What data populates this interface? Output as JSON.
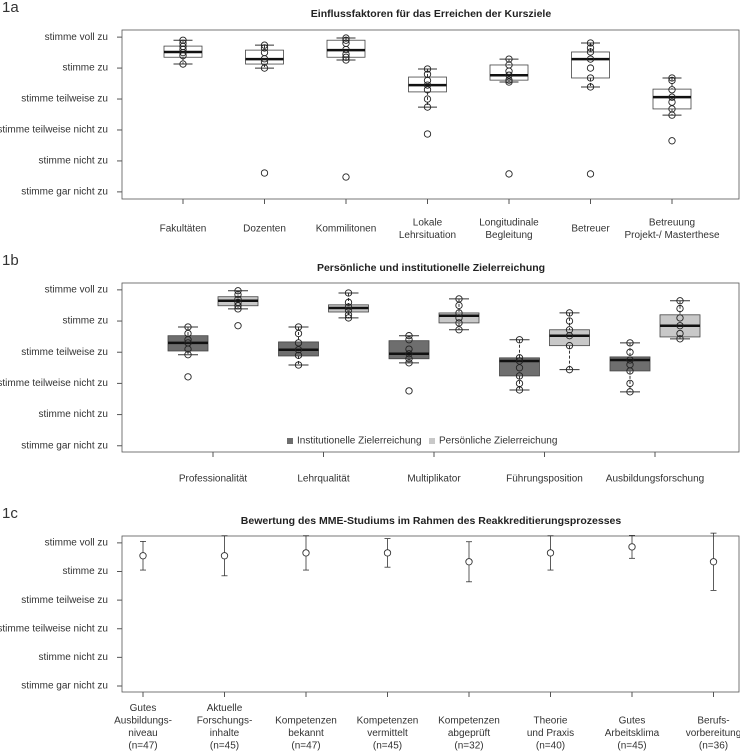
{
  "chart_data": [
    {
      "type": "boxplot",
      "label": "1a",
      "title": "Einflussfaktoren für das Erreichen der Kursziele",
      "categories": [
        [
          "Fakultäten"
        ],
        [
          "Dozenten"
        ],
        [
          "Kommilitonen"
        ],
        [
          "Lokale",
          "Lehrsituation"
        ],
        [
          "Longitudinale",
          "Begleitung"
        ],
        [
          "Betreuer"
        ],
        [
          "Betreuung",
          "Projekt-/ Masterthese"
        ]
      ],
      "ylim": [
        0.77,
        6.23
      ],
      "yticks": [
        {
          "value": 6,
          "label": "stimme voll zu"
        },
        {
          "value": 5,
          "label": "stimme zu"
        },
        {
          "value": 4,
          "label": "stimme teilweise zu"
        },
        {
          "value": 3,
          "label": "stimme teilweise nicht zu"
        },
        {
          "value": 2,
          "label": "stimme nicht zu"
        },
        {
          "value": 1,
          "label": "stimme gar nicht zu"
        }
      ],
      "series": [
        {
          "color": "#ffffff",
          "boxes": [
            {
              "lo": 5.13,
              "q1": 5.35,
              "median": 5.52,
              "q3": 5.71,
              "hi": 5.9,
              "points": [
                5.9,
                5.8,
                5.7,
                5.6,
                5.5,
                5.4,
                5.13
              ]
            },
            {
              "lo": 5.0,
              "q1": 5.13,
              "median": 5.29,
              "q3": 5.58,
              "hi": 5.74,
              "points": [
                5.74,
                5.65,
                5.5,
                5.3,
                5.2,
                5.0,
                1.61
              ]
            },
            {
              "lo": 5.26,
              "q1": 5.35,
              "median": 5.58,
              "q3": 5.9,
              "hi": 5.97,
              "points": [
                5.97,
                5.9,
                5.8,
                5.6,
                5.45,
                5.35,
                5.26,
                1.48
              ]
            },
            {
              "lo": 3.74,
              "q1": 4.23,
              "median": 4.45,
              "q3": 4.71,
              "hi": 4.97,
              "points": [
                4.97,
                4.8,
                4.6,
                4.45,
                4.3,
                4.0,
                3.74,
                2.87
              ]
            },
            {
              "lo": 4.55,
              "q1": 4.61,
              "median": 4.77,
              "q3": 5.1,
              "hi": 5.29,
              "points": [
                5.29,
                5.1,
                4.9,
                4.77,
                4.61,
                4.55,
                1.58
              ]
            },
            {
              "lo": 4.39,
              "q1": 4.68,
              "median": 5.29,
              "q3": 5.52,
              "hi": 5.81,
              "points": [
                5.81,
                5.65,
                5.52,
                5.29,
                5.0,
                4.68,
                4.39,
                1.58
              ]
            },
            {
              "lo": 3.48,
              "q1": 3.68,
              "median": 4.06,
              "q3": 4.32,
              "hi": 4.68,
              "points": [
                4.68,
                4.6,
                4.3,
                4.06,
                3.9,
                3.68,
                3.48,
                2.65
              ]
            }
          ]
        }
      ]
    },
    {
      "type": "boxplot",
      "label": "1b",
      "title": "Persönliche und institutionelle Zielerreichung",
      "categories": [
        [
          "Professionalität"
        ],
        [
          "Lehrqualität"
        ],
        [
          "Multiplikator"
        ],
        [
          "Führungsposition"
        ],
        [
          "Ausbildungsforschung"
        ]
      ],
      "ylim": [
        0.8,
        6.22
      ],
      "yticks": [
        {
          "value": 6,
          "label": "stimme voll zu"
        },
        {
          "value": 5,
          "label": "stimme zu"
        },
        {
          "value": 4,
          "label": "stimme teilweise zu"
        },
        {
          "value": 3,
          "label": "stimme teilweise nicht zu"
        },
        {
          "value": 2,
          "label": "stimme nicht zu"
        },
        {
          "value": 1,
          "label": "stimme gar nicht zu"
        }
      ],
      "legend": "bottom",
      "series": [
        {
          "name": "Institutionelle Zielerreichung",
          "color": "#6e6e6e",
          "boxes": [
            {
              "lo": 3.92,
              "q1": 4.04,
              "median": 4.3,
              "q3": 4.53,
              "hi": 4.81,
              "points": [
                4.81,
                4.6,
                4.4,
                4.3,
                4.1,
                3.92,
                3.21
              ]
            },
            {
              "lo": 3.59,
              "q1": 3.88,
              "median": 4.08,
              "q3": 4.33,
              "hi": 4.81,
              "points": [
                4.81,
                4.6,
                4.3,
                4.08,
                3.9,
                3.59
              ]
            },
            {
              "lo": 3.66,
              "q1": 3.79,
              "median": 3.95,
              "q3": 4.37,
              "hi": 4.53,
              "points": [
                4.53,
                4.4,
                4.1,
                3.95,
                3.79,
                3.66,
                2.76
              ]
            },
            {
              "lo": 2.79,
              "q1": 3.24,
              "median": 3.72,
              "q3": 3.82,
              "hi": 4.4,
              "points": [
                4.4,
                3.82,
                3.72,
                3.5,
                3.24,
                3.0,
                2.79
              ]
            },
            {
              "lo": 2.73,
              "q1": 3.4,
              "median": 3.75,
              "q3": 3.85,
              "hi": 4.3,
              "points": [
                4.3,
                4.0,
                3.75,
                3.6,
                3.4,
                3.0,
                2.73
              ]
            }
          ]
        },
        {
          "name": "Persönliche Zielerreichung",
          "color": "#c8c8c8",
          "boxes": [
            {
              "lo": 5.39,
              "q1": 5.49,
              "median": 5.65,
              "q3": 5.78,
              "hi": 5.97,
              "points": [
                5.97,
                5.85,
                5.7,
                5.6,
                5.49,
                5.39,
                4.85
              ]
            },
            {
              "lo": 5.1,
              "q1": 5.29,
              "median": 5.42,
              "q3": 5.52,
              "hi": 5.9,
              "points": [
                5.9,
                5.6,
                5.45,
                5.35,
                5.2,
                5.1
              ]
            },
            {
              "lo": 4.72,
              "q1": 4.94,
              "median": 5.17,
              "q3": 5.26,
              "hi": 5.71,
              "points": [
                5.71,
                5.5,
                5.26,
                5.1,
                4.94,
                4.72
              ]
            },
            {
              "lo": 3.44,
              "q1": 4.21,
              "median": 4.53,
              "q3": 4.72,
              "hi": 5.26,
              "points": [
                5.26,
                5.0,
                4.72,
                4.53,
                4.21,
                3.44
              ]
            },
            {
              "lo": 4.43,
              "q1": 4.49,
              "median": 4.85,
              "q3": 5.2,
              "hi": 5.65,
              "points": [
                5.65,
                5.4,
                5.1,
                4.85,
                4.6,
                4.43
              ]
            }
          ]
        }
      ]
    },
    {
      "type": "errorbar",
      "label": "1c",
      "title": "Bewertung des MME-Studiums im Rahmen des Reakkreditierungsprozesses",
      "categories": [
        [
          "Gutes",
          "Ausbildungs-",
          "niveau",
          "(n=47)"
        ],
        [
          "Aktuelle",
          "Forschungs-",
          "inhalte",
          "(n=45)"
        ],
        [
          "Kompetenzen",
          "bekannt",
          "(n=47)"
        ],
        [
          "Kompetenzen",
          "vermittelt",
          "(n=45)"
        ],
        [
          "Kompetenzen",
          "abgeprüft",
          "(n=32)"
        ],
        [
          "Theorie",
          "und Praxis",
          "(n=40)"
        ],
        [
          "Gutes",
          "Arbeitsklima",
          "(n=45)"
        ],
        [
          "Berufs-",
          "vorbereitung",
          "(n=36)"
        ]
      ],
      "ylim": [
        0.79,
        6.24
      ],
      "yticks": [
        {
          "value": 6,
          "label": "stimme voll zu"
        },
        {
          "value": 5,
          "label": "stimme zu"
        },
        {
          "value": 4,
          "label": "stimme teilweise zu"
        },
        {
          "value": 3,
          "label": "stimme teilweise nicht zu"
        },
        {
          "value": 2,
          "label": "stimme nicht zu"
        },
        {
          "value": 1,
          "label": "stimme gar nicht zu"
        }
      ],
      "values": [
        5.55,
        5.55,
        5.65,
        5.65,
        5.34,
        5.65,
        5.86,
        5.34
      ],
      "errors": [
        0.5,
        0.7,
        0.6,
        0.5,
        0.7,
        0.6,
        0.4,
        1.0
      ],
      "color": "#333333"
    }
  ]
}
